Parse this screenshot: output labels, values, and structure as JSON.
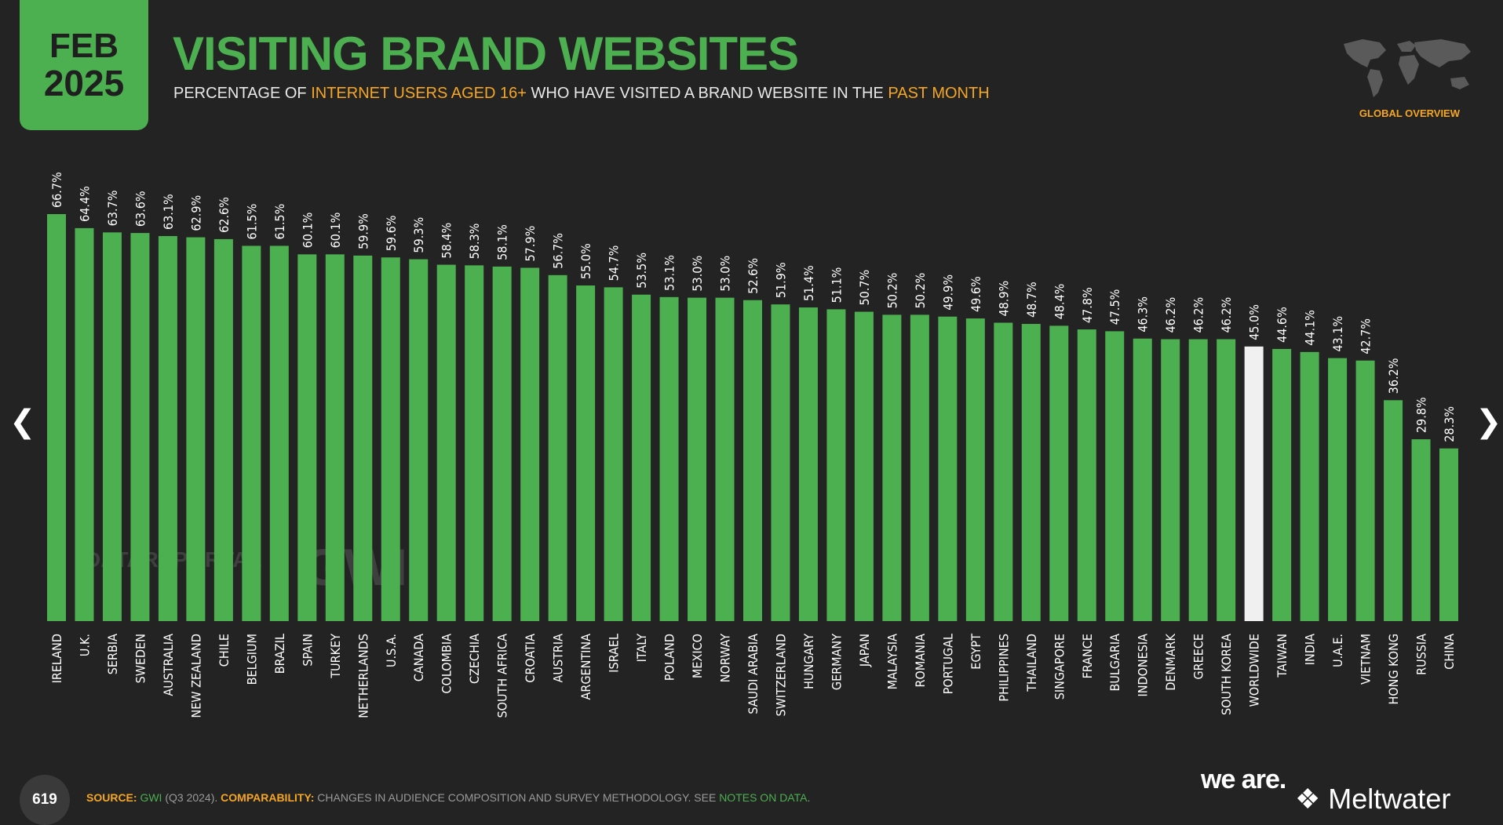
{
  "header": {
    "month": "FEB",
    "year": "2025",
    "title": "VISITING BRAND WEBSITES",
    "subtitle_parts": [
      "PERCENTAGE OF ",
      "INTERNET USERS AGED 16+",
      " WHO HAVE VISITED A BRAND WEBSITE IN THE ",
      "PAST MONTH"
    ],
    "badge": "GLOBAL OVERVIEW"
  },
  "colors": {
    "accent": "#4caf50",
    "highlight": "#f5a623",
    "background": "#232323",
    "worldwide_bar": "#f0f0f0"
  },
  "icons": {
    "map": "world-map-icon",
    "prev": "chevron-left-icon",
    "next": "chevron-right-icon"
  },
  "watermarks": {
    "datareportal": "DATAREPORTAL",
    "gwi": "GWI."
  },
  "footer": {
    "page_number": "619",
    "source_label": "SOURCE:",
    "source_link": "GWI",
    "source_rest": " (Q3 2024). ",
    "comparability_label": "COMPARABILITY:",
    "comparability_text": " CHANGES IN AUDIENCE COMPOSITION AND SURVEY METHODOLOGY. SEE ",
    "notes_link": "NOTES ON DATA",
    "notes_end": ".",
    "logo_weare": "we are.",
    "logo_meltwater": "Meltwater"
  },
  "chart_data": {
    "type": "bar",
    "ylim": [
      0,
      100
    ],
    "grid": false,
    "highlight_category": "WORLDWIDE",
    "categories": [
      "IRELAND",
      "U.K.",
      "SERBIA",
      "SWEDEN",
      "AUSTRALIA",
      "NEW ZEALAND",
      "CHILE",
      "BELGIUM",
      "BRAZIL",
      "SPAIN",
      "TURKEY",
      "NETHERLANDS",
      "U.S.A.",
      "CANADA",
      "COLOMBIA",
      "CZECHIA",
      "SOUTH AFRICA",
      "CROATIA",
      "AUSTRIA",
      "ARGENTINA",
      "ISRAEL",
      "ITALY",
      "POLAND",
      "MEXICO",
      "NORWAY",
      "SAUDI ARABIA",
      "SWITZERLAND",
      "HUNGARY",
      "GERMANY",
      "JAPAN",
      "MALAYSIA",
      "ROMANIA",
      "PORTUGAL",
      "EGYPT",
      "PHILIPPINES",
      "THAILAND",
      "SINGAPORE",
      "FRANCE",
      "BULGARIA",
      "INDONESIA",
      "DENMARK",
      "GREECE",
      "SOUTH KOREA",
      "WORLDWIDE",
      "TAIWAN",
      "INDIA",
      "U.A.E.",
      "VIETNAM",
      "HONG KONG",
      "RUSSIA",
      "CHINA"
    ],
    "values": [
      66.7,
      64.4,
      63.7,
      63.6,
      63.1,
      62.9,
      62.6,
      61.5,
      61.5,
      60.1,
      60.1,
      59.9,
      59.6,
      59.3,
      58.4,
      58.3,
      58.1,
      57.9,
      56.7,
      55.0,
      54.7,
      53.5,
      53.1,
      53.0,
      53.0,
      52.6,
      51.9,
      51.4,
      51.1,
      50.7,
      50.2,
      50.2,
      49.9,
      49.6,
      48.9,
      48.7,
      48.4,
      47.8,
      47.5,
      46.3,
      46.2,
      46.2,
      46.2,
      45.0,
      44.6,
      44.1,
      43.1,
      42.7,
      36.2,
      29.8,
      28.3
    ],
    "value_labels": [
      "66.7%",
      "64.4%",
      "63.7%",
      "63.6%",
      "63.1%",
      "62.9%",
      "62.6%",
      "61.5%",
      "61.5%",
      "60.1%",
      "60.1%",
      "59.9%",
      "59.6%",
      "59.3%",
      "58.4%",
      "58.3%",
      "58.1%",
      "57.9%",
      "56.7%",
      "55.0%",
      "54.7%",
      "53.5%",
      "53.1%",
      "53.0%",
      "53.0%",
      "52.6%",
      "51.9%",
      "51.4%",
      "51.1%",
      "50.7%",
      "50.2%",
      "50.2%",
      "49.9%",
      "49.6%",
      "48.9%",
      "48.7%",
      "48.4%",
      "47.8%",
      "47.5%",
      "46.3%",
      "46.2%",
      "46.2%",
      "46.2%",
      "45.0%",
      "44.6%",
      "44.1%",
      "43.1%",
      "42.7%",
      "36.2%",
      "29.8%",
      "28.3%"
    ]
  }
}
